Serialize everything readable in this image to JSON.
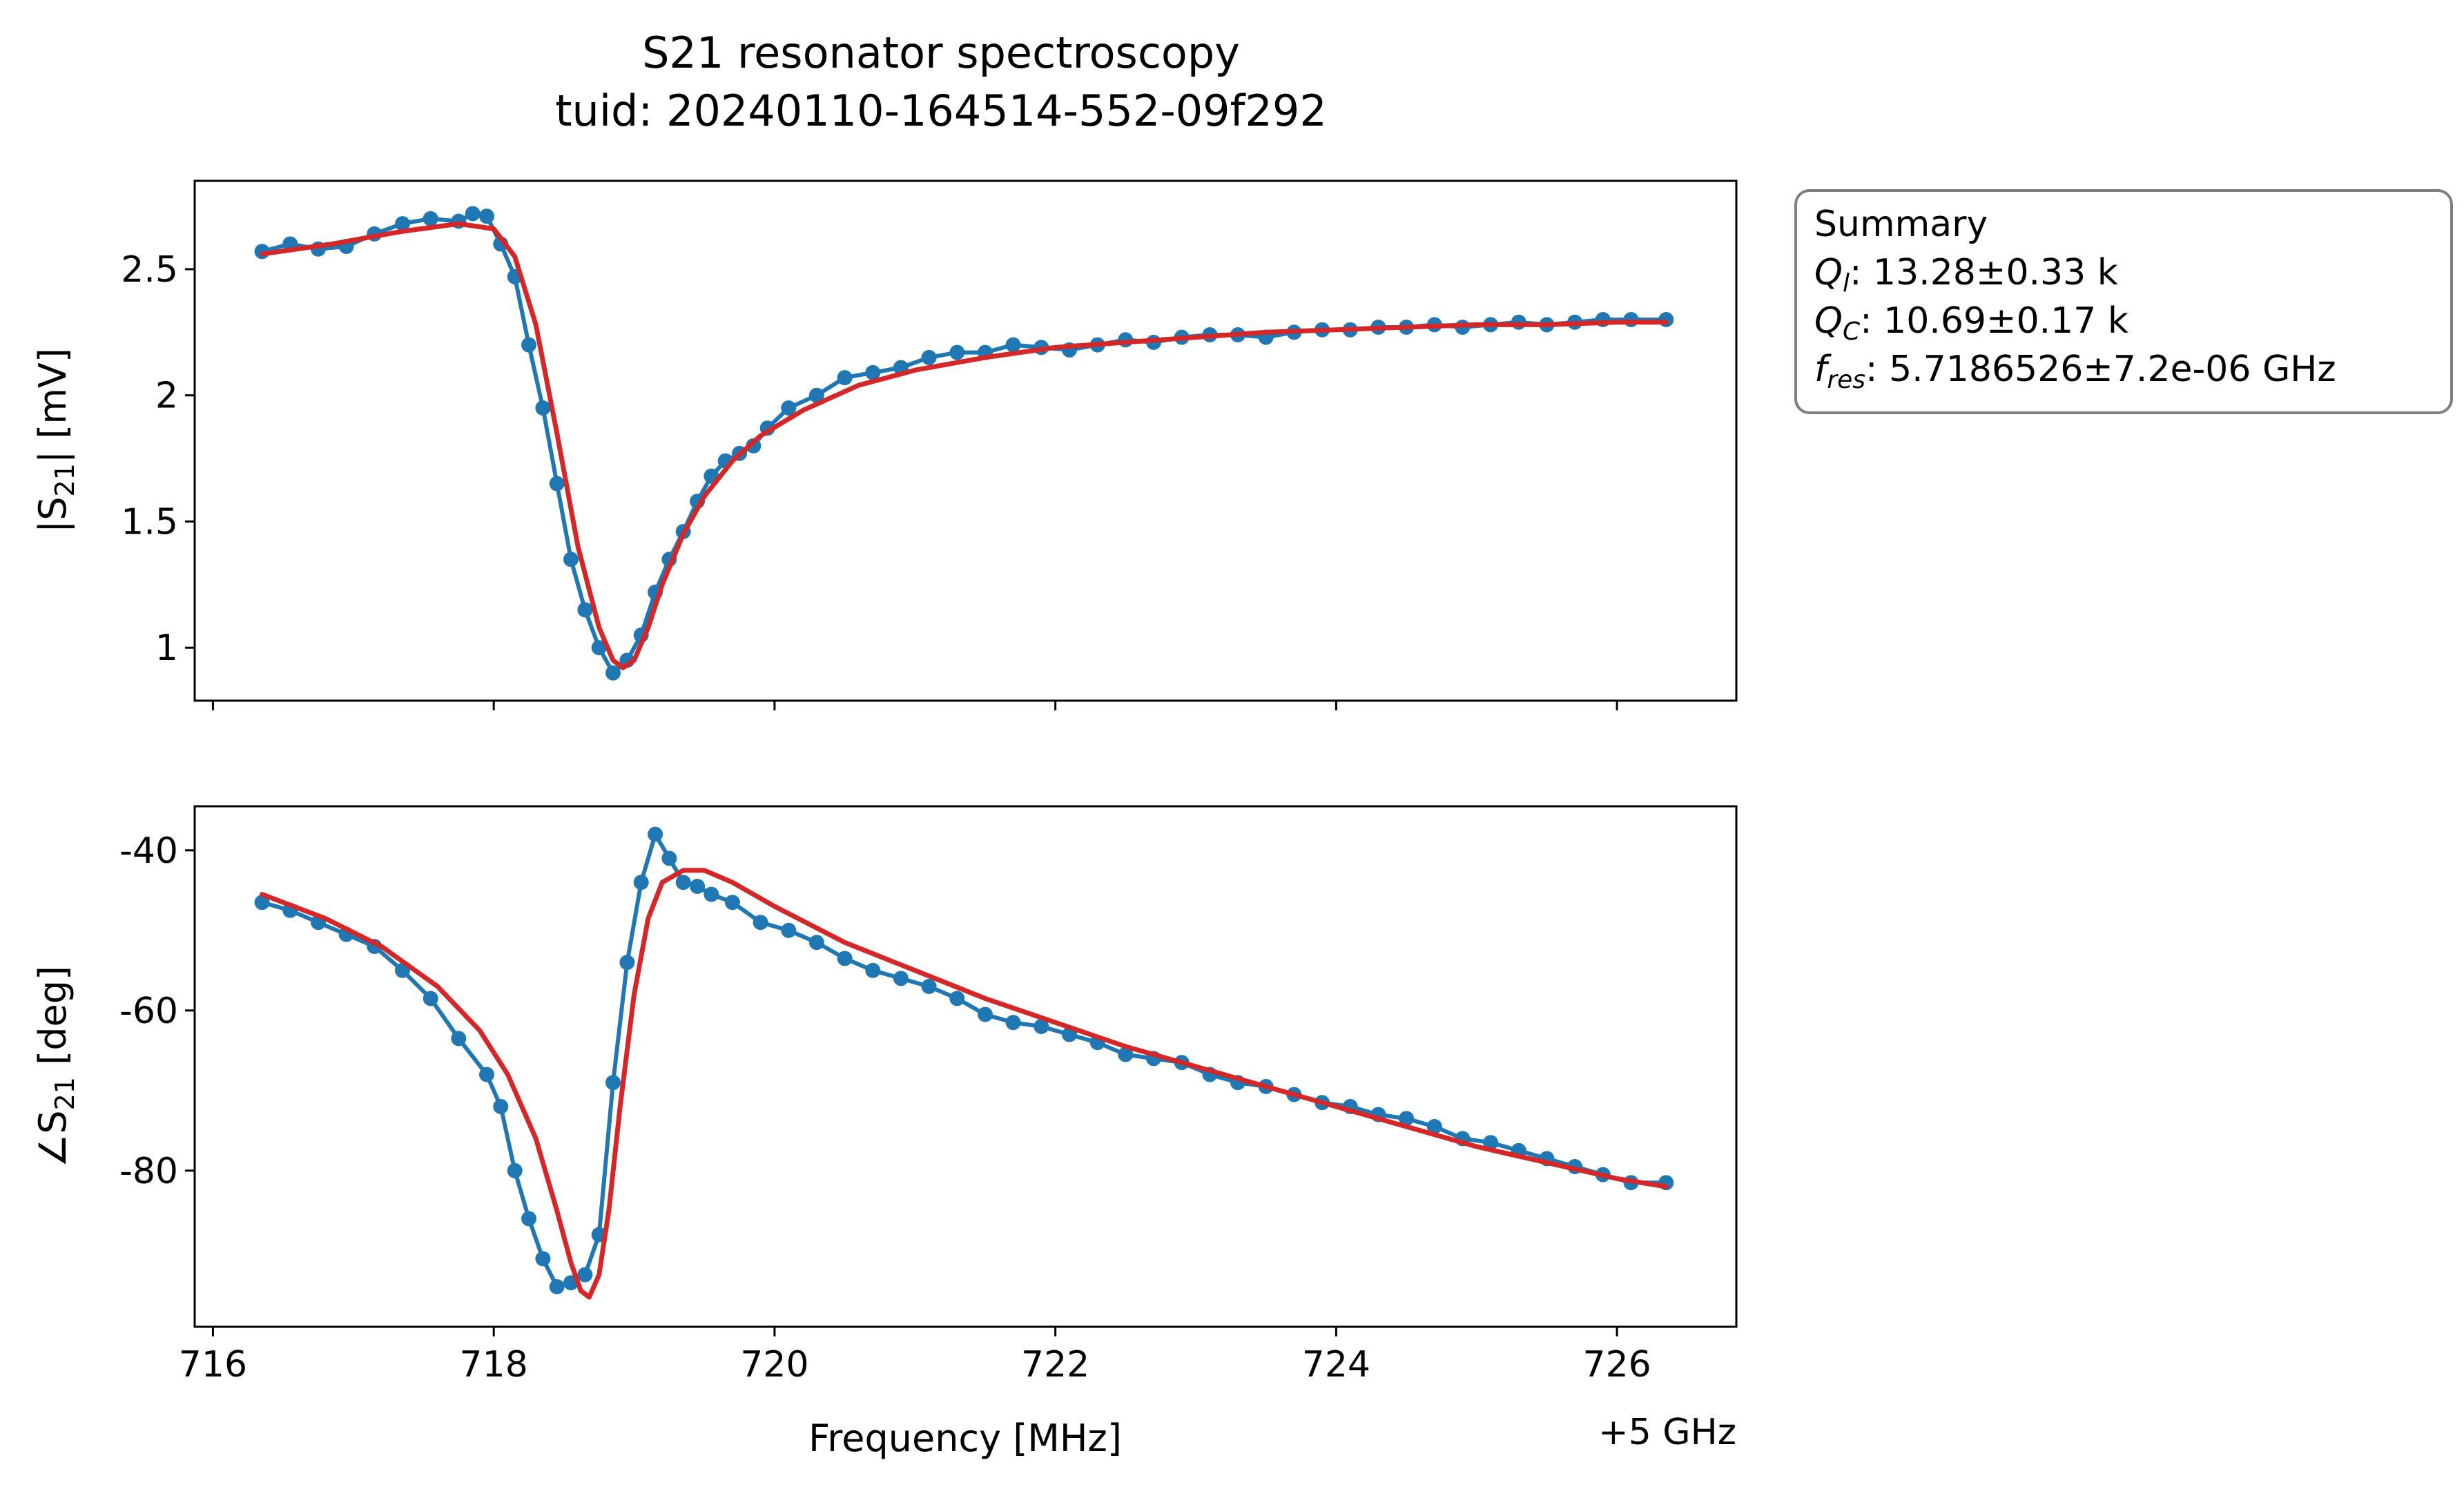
{
  "figure": {
    "title_line1": "S21 resonator spectroscopy",
    "title_line2": "tuid: 20240110-164514-552-09f292"
  },
  "summary_box": {
    "heading": "Summary",
    "lines": [
      {
        "sym": "Q",
        "sub": "l",
        "text": ": 13.28±0.33 k"
      },
      {
        "sym": "Q",
        "sub": "C",
        "text": ": 10.69±0.17 k"
      },
      {
        "sym": "f",
        "sub": "res",
        "text": ": 5.7186526±7.2e-06 GHz"
      }
    ]
  },
  "colors": {
    "data": "#1f77b4",
    "fit": "#d62728",
    "axes": "#000000",
    "legend_border": "#7f7f7f"
  },
  "chart_data": [
    {
      "type": "line",
      "panel": "top",
      "ylabel_main": "|S",
      "ylabel_sub": "21",
      "ylabel_tail": "| [mV]",
      "xlim": [
        715.87,
        726.85
      ],
      "ylim": [
        0.79,
        2.85
      ],
      "yticks": [
        1,
        1.5,
        2,
        2.5
      ],
      "ytick_labels": [
        "1",
        "1.5",
        "2",
        "2.5"
      ],
      "xticks": [
        716,
        718,
        720,
        722,
        724,
        726
      ],
      "series": [
        {
          "role": "data",
          "marker": "circle",
          "x": [
            716.35,
            716.55,
            716.75,
            716.95,
            717.15,
            717.35,
            717.55,
            717.75,
            717.85,
            717.95,
            718.05,
            718.15,
            718.25,
            718.35,
            718.45,
            718.55,
            718.65,
            718.75,
            718.85,
            718.95,
            719.05,
            719.15,
            719.25,
            719.35,
            719.45,
            719.55,
            719.65,
            719.75,
            719.85,
            719.95,
            720.1,
            720.3,
            720.5,
            720.7,
            720.9,
            721.1,
            721.3,
            721.5,
            721.7,
            721.9,
            722.1,
            722.3,
            722.5,
            722.7,
            722.9,
            723.1,
            723.3,
            723.5,
            723.7,
            723.9,
            724.1,
            724.3,
            724.5,
            724.7,
            724.9,
            725.1,
            725.3,
            725.5,
            725.7,
            725.9,
            726.1,
            726.35
          ],
          "y": [
            2.57,
            2.6,
            2.58,
            2.59,
            2.64,
            2.68,
            2.7,
            2.69,
            2.72,
            2.71,
            2.6,
            2.47,
            2.2,
            1.95,
            1.65,
            1.35,
            1.15,
            1.0,
            0.9,
            0.95,
            1.05,
            1.22,
            1.35,
            1.46,
            1.58,
            1.68,
            1.74,
            1.77,
            1.8,
            1.87,
            1.95,
            2.0,
            2.07,
            2.09,
            2.11,
            2.15,
            2.17,
            2.17,
            2.2,
            2.19,
            2.18,
            2.2,
            2.22,
            2.21,
            2.23,
            2.24,
            2.24,
            2.23,
            2.25,
            2.26,
            2.26,
            2.27,
            2.27,
            2.28,
            2.27,
            2.28,
            2.29,
            2.28,
            2.29,
            2.3,
            2.3,
            2.3
          ]
        },
        {
          "role": "fit",
          "x": [
            716.35,
            716.85,
            717.35,
            717.75,
            718.0,
            718.15,
            718.3,
            718.45,
            718.6,
            718.75,
            718.85,
            718.92,
            719.0,
            719.1,
            719.2,
            719.35,
            719.5,
            719.7,
            719.9,
            720.2,
            720.6,
            721.0,
            721.5,
            722.0,
            722.5,
            723.0,
            723.5,
            724.0,
            724.5,
            725.0,
            725.5,
            726.0,
            726.35
          ],
          "y": [
            2.56,
            2.6,
            2.65,
            2.68,
            2.66,
            2.55,
            2.28,
            1.85,
            1.4,
            1.08,
            0.95,
            0.92,
            0.95,
            1.08,
            1.25,
            1.45,
            1.6,
            1.74,
            1.84,
            1.94,
            2.04,
            2.1,
            2.15,
            2.19,
            2.21,
            2.23,
            2.25,
            2.26,
            2.27,
            2.28,
            2.28,
            2.29,
            2.29
          ]
        }
      ]
    },
    {
      "type": "line",
      "panel": "bottom",
      "ylabel_main": "∠S",
      "ylabel_sub": "21",
      "ylabel_tail": " [deg]",
      "xlabel": "Frequency [MHz]",
      "offset_label": "+5 GHz",
      "xlim": [
        715.87,
        726.85
      ],
      "ylim": [
        -99.5,
        -34.5
      ],
      "yticks": [
        -80,
        -60,
        -40
      ],
      "ytick_labels": [
        "-80",
        "-60",
        "-40"
      ],
      "xticks": [
        716,
        718,
        720,
        722,
        724,
        726
      ],
      "xtick_labels": [
        "716",
        "718",
        "720",
        "722",
        "724",
        "726"
      ],
      "series": [
        {
          "role": "data",
          "marker": "circle",
          "x": [
            716.35,
            716.55,
            716.75,
            716.95,
            717.15,
            717.35,
            717.55,
            717.75,
            717.95,
            718.05,
            718.15,
            718.25,
            718.35,
            718.45,
            718.55,
            718.65,
            718.75,
            718.85,
            718.95,
            719.05,
            719.15,
            719.25,
            719.35,
            719.45,
            719.55,
            719.7,
            719.9,
            720.1,
            720.3,
            720.5,
            720.7,
            720.9,
            721.1,
            721.3,
            721.5,
            721.7,
            721.9,
            722.1,
            722.3,
            722.5,
            722.7,
            722.9,
            723.1,
            723.3,
            723.5,
            723.7,
            723.9,
            724.1,
            724.3,
            724.5,
            724.7,
            724.9,
            725.1,
            725.3,
            725.5,
            725.7,
            725.9,
            726.1,
            726.35
          ],
          "y": [
            -46.5,
            -47.5,
            -49,
            -50.5,
            -52,
            -55,
            -58.5,
            -63.5,
            -68,
            -72,
            -80,
            -86,
            -91,
            -94.5,
            -94,
            -93,
            -88,
            -69,
            -54,
            -44,
            -38,
            -41,
            -44,
            -44.5,
            -45.5,
            -46.5,
            -49,
            -50,
            -51.5,
            -53.5,
            -55,
            -56,
            -57,
            -58.5,
            -60.5,
            -61.5,
            -62,
            -63,
            -64,
            -65.5,
            -66,
            -66.5,
            -68,
            -69,
            -69.5,
            -70.5,
            -71.5,
            -72,
            -73,
            -73.5,
            -74.5,
            -76,
            -76.5,
            -77.5,
            -78.5,
            -79.5,
            -80.5,
            -81.5,
            -81.5
          ]
        },
        {
          "role": "fit",
          "x": [
            716.35,
            716.8,
            717.2,
            717.6,
            717.9,
            718.1,
            718.3,
            718.45,
            718.55,
            718.62,
            718.68,
            718.75,
            718.82,
            718.9,
            719.0,
            719.1,
            719.2,
            719.35,
            719.5,
            719.7,
            720.0,
            720.5,
            721.0,
            721.5,
            722.0,
            722.5,
            723.0,
            723.5,
            724.0,
            724.5,
            725.0,
            725.5,
            726.0,
            726.35
          ],
          "y": [
            -45.5,
            -48.5,
            -52,
            -57,
            -62.5,
            -68,
            -76,
            -85,
            -91.5,
            -95,
            -95.8,
            -93,
            -85,
            -72,
            -58,
            -48.5,
            -44,
            -42.5,
            -42.5,
            -44,
            -47,
            -51.5,
            -55,
            -58.5,
            -61.5,
            -64.5,
            -67,
            -69.5,
            -72,
            -74.5,
            -77,
            -79,
            -81,
            -82
          ]
        }
      ]
    }
  ]
}
